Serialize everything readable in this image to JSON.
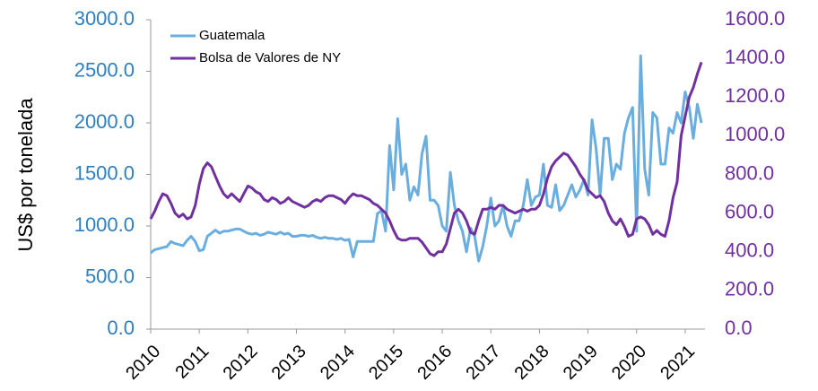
{
  "chart_data": {
    "type": "line",
    "y_label": "US$ por tonelada",
    "categories": [
      "2010",
      null,
      null,
      null,
      null,
      null,
      null,
      null,
      null,
      null,
      null,
      null,
      "2011",
      null,
      null,
      null,
      null,
      null,
      null,
      null,
      null,
      null,
      null,
      null,
      "2012",
      null,
      null,
      null,
      null,
      null,
      null,
      null,
      null,
      null,
      null,
      null,
      "2013",
      null,
      null,
      null,
      null,
      null,
      null,
      null,
      null,
      null,
      null,
      null,
      "2014",
      null,
      null,
      null,
      null,
      null,
      null,
      null,
      null,
      null,
      null,
      null,
      "2015",
      null,
      null,
      null,
      null,
      null,
      null,
      null,
      null,
      null,
      null,
      null,
      "2016",
      null,
      null,
      null,
      null,
      null,
      null,
      null,
      null,
      null,
      null,
      null,
      "2017",
      null,
      null,
      null,
      null,
      null,
      null,
      null,
      null,
      null,
      null,
      null,
      "2018",
      null,
      null,
      null,
      null,
      null,
      null,
      null,
      null,
      null,
      null,
      null,
      "2019",
      null,
      null,
      null,
      null,
      null,
      null,
      null,
      null,
      null,
      null,
      null,
      "2020",
      null,
      null,
      null,
      null,
      null,
      null,
      null,
      null,
      null,
      null,
      null,
      "2021",
      null,
      null,
      null,
      null
    ],
    "series": [
      {
        "name": "Guatemala",
        "color": "#6aaee0",
        "values": [
          740,
          770,
          780,
          790,
          800,
          850,
          830,
          820,
          810,
          860,
          900,
          850,
          760,
          770,
          900,
          930,
          960,
          930,
          950,
          950,
          960,
          970,
          970,
          950,
          930,
          920,
          930,
          910,
          920,
          940,
          930,
          920,
          940,
          920,
          930,
          900,
          900,
          910,
          910,
          900,
          910,
          890,
          880,
          890,
          880,
          880,
          870,
          880,
          860,
          870,
          700,
          850,
          850,
          850,
          850,
          850,
          1120,
          1150,
          950,
          1780,
          1350,
          2040,
          1500,
          1600,
          1250,
          1380,
          1300,
          1700,
          1870,
          1250,
          1250,
          1200,
          1000,
          950,
          1520,
          1200,
          1050,
          950,
          750,
          980,
          900,
          660,
          800,
          1000,
          1270,
          1000,
          1050,
          1200,
          1000,
          900,
          1050,
          1050,
          1200,
          1450,
          1200,
          1280,
          1300,
          1600,
          1200,
          1180,
          1400,
          1150,
          1200,
          1300,
          1400,
          1280,
          1350,
          1450,
          1300,
          2030,
          1750,
          1300,
          1850,
          1850,
          1450,
          1600,
          1550,
          1900,
          2050,
          2150,
          950,
          2650,
          1550,
          1300,
          2100,
          2050,
          1600,
          1600,
          1950,
          1900,
          2100,
          2000,
          2300,
          2150,
          1850,
          2180,
          2000
        ]
      },
      {
        "name": "Bolsa de Valores de NY",
        "color": "#7030a0",
        "axis": "y2",
        "values": [
          570,
          610,
          660,
          700,
          690,
          650,
          600,
          580,
          595,
          570,
          580,
          640,
          750,
          830,
          860,
          840,
          790,
          740,
          700,
          680,
          700,
          680,
          660,
          700,
          740,
          730,
          710,
          700,
          670,
          660,
          680,
          670,
          650,
          660,
          680,
          660,
          650,
          640,
          630,
          640,
          660,
          670,
          660,
          680,
          690,
          690,
          680,
          670,
          650,
          680,
          700,
          690,
          690,
          680,
          670,
          650,
          640,
          620,
          600,
          560,
          510,
          470,
          460,
          460,
          470,
          470,
          470,
          450,
          420,
          390,
          380,
          400,
          400,
          440,
          520,
          600,
          620,
          600,
          560,
          500,
          490,
          560,
          620,
          620,
          630,
          620,
          640,
          640,
          620,
          610,
          600,
          610,
          620,
          610,
          620,
          620,
          640,
          700,
          780,
          840,
          870,
          890,
          910,
          900,
          870,
          840,
          800,
          770,
          720,
          700,
          680,
          690,
          660,
          600,
          560,
          540,
          570,
          530,
          480,
          490,
          570,
          580,
          570,
          540,
          490,
          510,
          490,
          480,
          560,
          680,
          760,
          1000,
          1100,
          1200,
          1250,
          1320,
          1380
        ]
      }
    ],
    "ylim": [
      0,
      3000
    ],
    "yticks": [
      {
        "value": 0,
        "label": "0.0"
      },
      {
        "value": 500,
        "label": "500.0"
      },
      {
        "value": 1000,
        "label": "1000.0"
      },
      {
        "value": 1500,
        "label": "1500.0"
      },
      {
        "value": 2000,
        "label": "2000.0"
      },
      {
        "value": 2500,
        "label": "2500.0"
      },
      {
        "value": 3000,
        "label": "3000.0"
      }
    ],
    "y2lim": [
      0,
      1600
    ],
    "y2ticks": [
      {
        "value": 0,
        "label": "0.0"
      },
      {
        "value": 200,
        "label": "200.0"
      },
      {
        "value": 400,
        "label": "400.0"
      },
      {
        "value": 600,
        "label": "600.0"
      },
      {
        "value": 800,
        "label": "800.0"
      },
      {
        "value": 1000,
        "label": "1000.0"
      },
      {
        "value": 1200,
        "label": "1200.0"
      },
      {
        "value": 1400,
        "label": "1400.0"
      },
      {
        "value": 1600,
        "label": "1600.0"
      }
    ],
    "legend": "upper left"
  }
}
